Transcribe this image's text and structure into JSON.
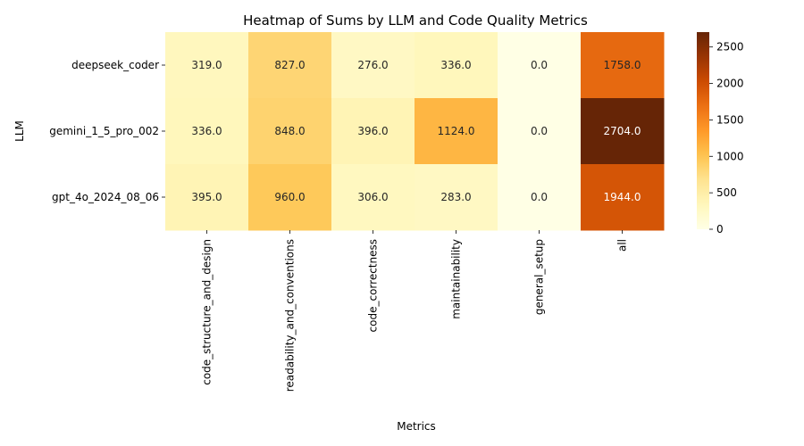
{
  "chart_data": {
    "type": "heatmap",
    "title": "Heatmap of Sums by LLM and Code Quality Metrics",
    "xlabel": "Metrics",
    "ylabel": "LLM",
    "columns": [
      "code_structure_and_design",
      "readability_and_conventions",
      "code_correctness",
      "maintainability",
      "general_setup",
      "all"
    ],
    "rows": [
      "deepseek_coder",
      "gemini_1_5_pro_002",
      "gpt_4o_2024_08_06"
    ],
    "values": [
      [
        319.0,
        827.0,
        276.0,
        336.0,
        0.0,
        1758.0
      ],
      [
        336.0,
        848.0,
        396.0,
        1124.0,
        0.0,
        2704.0
      ],
      [
        395.0,
        960.0,
        306.0,
        283.0,
        0.0,
        1944.0
      ]
    ],
    "value_labels": [
      [
        "319.0",
        "827.0",
        "276.0",
        "336.0",
        "0.0",
        "1758.0"
      ],
      [
        "336.0",
        "848.0",
        "396.0",
        "1124.0",
        "0.0",
        "2704.0"
      ],
      [
        "395.0",
        "960.0",
        "306.0",
        "283.0",
        "0.0",
        "1944.0"
      ]
    ],
    "colormap": "YlOrBr",
    "vmin": 0,
    "vmax": 2704,
    "colorbar_ticks": [
      0,
      500,
      1000,
      1500,
      2000,
      2500
    ],
    "colorbar_tick_labels": [
      "0",
      "500",
      "1000",
      "1500",
      "2000",
      "2500"
    ],
    "grid": false,
    "legend": "colorbar-right"
  }
}
